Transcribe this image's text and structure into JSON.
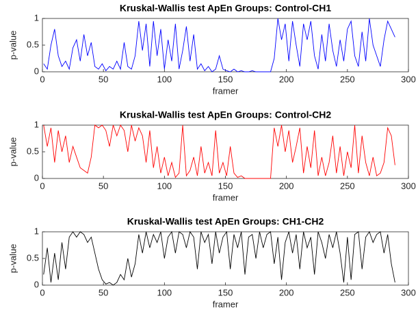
{
  "chart_data": [
    {
      "type": "line",
      "title": "Kruskal-Wallis test ApEn Groups: Control-CH1",
      "xlabel": "framer",
      "ylabel": "p-value",
      "color": "#0000ff",
      "xlim": [
        0,
        300
      ],
      "xticks": [
        0,
        50,
        100,
        150,
        200,
        250,
        300
      ],
      "ylim": [
        0,
        1
      ],
      "yticks": [
        0,
        0.5,
        1
      ],
      "x": [
        1,
        4,
        7,
        10,
        13,
        16,
        19,
        22,
        25,
        28,
        31,
        34,
        37,
        40,
        43,
        46,
        49,
        52,
        55,
        58,
        61,
        64,
        67,
        70,
        73,
        76,
        79,
        82,
        85,
        88,
        91,
        94,
        97,
        100,
        103,
        106,
        109,
        112,
        115,
        118,
        121,
        124,
        127,
        130,
        133,
        136,
        139,
        142,
        145,
        148,
        151,
        154,
        157,
        160,
        163,
        166,
        169,
        172,
        175,
        178,
        181,
        184,
        187,
        190,
        193,
        196,
        199,
        202,
        205,
        208,
        211,
        214,
        217,
        220,
        223,
        226,
        229,
        232,
        235,
        238,
        241,
        244,
        247,
        250,
        253,
        256,
        259,
        262,
        265,
        268,
        271,
        274,
        277,
        280,
        283,
        286,
        289
      ],
      "values": [
        0.15,
        0.05,
        0.5,
        0.8,
        0.3,
        0.1,
        0.2,
        0.05,
        0.45,
        0.6,
        0.2,
        0.7,
        0.3,
        0.55,
        0.1,
        0.05,
        0.15,
        0.02,
        0.1,
        0.05,
        0.2,
        0.05,
        0.55,
        0.1,
        0.05,
        0.3,
        0.95,
        0.4,
        0.9,
        0.1,
        0.95,
        0.3,
        0.8,
        0.05,
        0.6,
        0.2,
        0.9,
        0.05,
        0.4,
        0.85,
        0.2,
        0.7,
        0.05,
        0.15,
        0.02,
        0.1,
        0,
        0.05,
        0.3,
        0.05,
        0.02,
        0,
        0.05,
        0,
        0.02,
        0,
        0,
        0.02,
        0,
        0,
        0,
        0,
        0,
        0.25,
        1,
        0.6,
        0.9,
        0.2,
        0.95,
        0.5,
        0.1,
        0.9,
        0.6,
        0.95,
        0.3,
        0.05,
        0.7,
        0.2,
        0.9,
        0.4,
        0.1,
        0.6,
        0.2,
        0.8,
        0.95,
        0.3,
        0.1,
        0.75,
        0.2,
        1,
        0.5,
        0.3,
        0.1,
        0.6,
        0.95,
        0.8,
        0.65
      ]
    },
    {
      "type": "line",
      "title": "Kruskal-Wallis test ApEn Groups: Control-CH2",
      "xlabel": "framer",
      "ylabel": "p-value",
      "color": "#ff0000",
      "xlim": [
        0,
        300
      ],
      "xticks": [
        0,
        50,
        100,
        150,
        200,
        250,
        300
      ],
      "ylim": [
        0,
        1
      ],
      "yticks": [
        0,
        0.5,
        1
      ],
      "x": [
        1,
        4,
        7,
        10,
        13,
        16,
        19,
        22,
        25,
        28,
        31,
        34,
        37,
        40,
        43,
        46,
        49,
        52,
        55,
        58,
        61,
        64,
        67,
        70,
        73,
        76,
        79,
        82,
        85,
        88,
        91,
        94,
        97,
        100,
        103,
        106,
        109,
        112,
        115,
        118,
        121,
        124,
        127,
        130,
        133,
        136,
        139,
        142,
        145,
        148,
        151,
        154,
        157,
        160,
        163,
        166,
        169,
        172,
        175,
        178,
        181,
        184,
        187,
        190,
        193,
        196,
        199,
        202,
        205,
        208,
        211,
        214,
        217,
        220,
        223,
        226,
        229,
        232,
        235,
        238,
        241,
        244,
        247,
        250,
        253,
        256,
        259,
        262,
        265,
        268,
        271,
        274,
        277,
        280,
        283,
        286,
        289
      ],
      "values": [
        1,
        0.6,
        0.95,
        0.3,
        0.9,
        0.5,
        0.8,
        0.3,
        0.6,
        0.4,
        0.2,
        0.15,
        0.1,
        0.4,
        1,
        0.95,
        1,
        0.9,
        0.6,
        1,
        0.8,
        1,
        0.9,
        0.5,
        1,
        0.7,
        0.95,
        0.8,
        0.3,
        0.9,
        0.2,
        0.6,
        0.1,
        0.4,
        0.05,
        0.3,
        0.02,
        0.1,
        1,
        0.05,
        0.15,
        0.4,
        0.05,
        0.6,
        0.1,
        0.3,
        0.05,
        0.9,
        0.1,
        0.3,
        0.05,
        0.6,
        0.1,
        0.02,
        0.05,
        0,
        0,
        0,
        0,
        0,
        0,
        0,
        0,
        0.95,
        0.6,
        1,
        0.5,
        0.9,
        0.3,
        0.6,
        0.95,
        0.1,
        0.6,
        0.2,
        0.9,
        0.05,
        0.4,
        0.05,
        0.3,
        0.8,
        0.1,
        0.6,
        0.05,
        0.5,
        0.2,
        1,
        0.1,
        0.8,
        0.3,
        0.05,
        0.4,
        0.05,
        0.1,
        0.3,
        0.95,
        0.8,
        0.25
      ]
    },
    {
      "type": "line",
      "title": "Kruskal-Wallis test ApEn Groups: CH1-CH2",
      "xlabel": "framer",
      "ylabel": "p-value",
      "color": "#000000",
      "xlim": [
        0,
        300
      ],
      "xticks": [
        0,
        50,
        100,
        150,
        200,
        250,
        300
      ],
      "ylim": [
        0,
        1
      ],
      "yticks": [
        0,
        0.5,
        1
      ],
      "x": [
        1,
        4,
        7,
        10,
        13,
        16,
        19,
        22,
        25,
        28,
        31,
        34,
        37,
        40,
        43,
        46,
        49,
        52,
        55,
        58,
        61,
        64,
        67,
        70,
        73,
        76,
        79,
        82,
        85,
        88,
        91,
        94,
        97,
        100,
        103,
        106,
        109,
        112,
        115,
        118,
        121,
        124,
        127,
        130,
        133,
        136,
        139,
        142,
        145,
        148,
        151,
        154,
        157,
        160,
        163,
        166,
        169,
        172,
        175,
        178,
        181,
        184,
        187,
        190,
        193,
        196,
        199,
        202,
        205,
        208,
        211,
        214,
        217,
        220,
        223,
        226,
        229,
        232,
        235,
        238,
        241,
        244,
        247,
        250,
        253,
        256,
        259,
        262,
        265,
        268,
        271,
        274,
        277,
        280,
        283,
        286,
        289
      ],
      "values": [
        0.2,
        0.7,
        0.05,
        0.6,
        0.1,
        0.8,
        0.3,
        0.9,
        1,
        0.9,
        1,
        0.95,
        0.8,
        0.9,
        0.6,
        0.3,
        0.1,
        0.02,
        0.05,
        0,
        0.05,
        0.2,
        0.1,
        0.5,
        0.15,
        0.4,
        0.95,
        0.6,
        1,
        0.7,
        0.95,
        0.8,
        1,
        0.5,
        0.9,
        1,
        0.6,
        1,
        0.95,
        0.7,
        1,
        0.9,
        0.3,
        1,
        0.8,
        0.95,
        0.4,
        1,
        0.6,
        0.9,
        1,
        0.3,
        0.95,
        0.7,
        1,
        0.2,
        0.9,
        0.95,
        0.5,
        1,
        0.7,
        0.95,
        1,
        0.4,
        0.9,
        0.1,
        0.8,
        1,
        0.6,
        0.95,
        0.3,
        1,
        0.7,
        0.9,
        0.2,
        1,
        0.8,
        0.5,
        0.95,
        0.7,
        1,
        0.6,
        0.05,
        0.9,
        0.1,
        0.95,
        1,
        0.3,
        0.9,
        1,
        0.8,
        0.95,
        1,
        0.6,
        0.95,
        0.4,
        0.05
      ]
    }
  ]
}
